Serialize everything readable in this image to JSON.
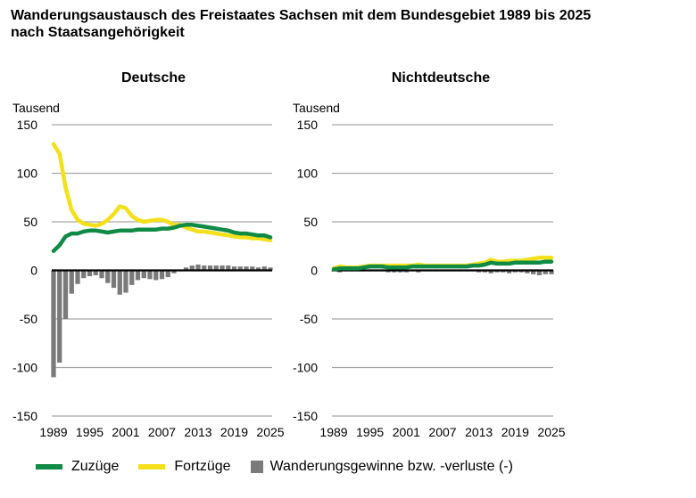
{
  "title": {
    "line1": "Wanderungsaustausch des Freistaates Sachsen mit dem Bundesgebiet 1989 bis 2025",
    "line2": "nach Staatsangehörigkeit"
  },
  "colors": {
    "zuzuege": "#0f8b46",
    "fortzuege": "#f3e01a",
    "saldo": "#7a7a7a",
    "grid": "#a6a6a6"
  },
  "legend": {
    "zuzuege": "Zuzüge",
    "fortzuege": "Fortzüge",
    "saldo": "Wanderungsgewinne bzw. -verluste (-)"
  },
  "chart_data": [
    {
      "type": "line",
      "title": "Deutsche",
      "ylabel": "Tausend",
      "ylim": [
        -150,
        150
      ],
      "yticks": [
        150,
        100,
        50,
        0,
        -50,
        -100,
        -150
      ],
      "xticks": [
        1989,
        1995,
        2001,
        2007,
        2013,
        2019,
        2025
      ],
      "grid": true,
      "x": [
        1989,
        1990,
        1991,
        1992,
        1993,
        1994,
        1995,
        1996,
        1997,
        1998,
        1999,
        2000,
        2001,
        2002,
        2003,
        2004,
        2005,
        2006,
        2007,
        2008,
        2009,
        2010,
        2011,
        2012,
        2013,
        2014,
        2015,
        2016,
        2017,
        2018,
        2019,
        2020,
        2021,
        2022,
        2023,
        2024,
        2025
      ],
      "series": [
        {
          "name": "Zuzüge",
          "kind": "line",
          "color": "#0f8b46",
          "values": [
            20,
            26,
            35,
            38,
            38,
            40,
            41,
            41,
            40,
            39,
            40,
            41,
            41,
            41,
            42,
            42,
            42,
            42,
            43,
            43,
            44,
            46,
            47,
            47,
            46,
            45,
            44,
            43,
            42,
            41,
            39,
            38,
            38,
            37,
            36,
            36,
            34
          ]
        },
        {
          "name": "Fortzüge",
          "kind": "line",
          "color": "#f3e01a",
          "values": [
            130,
            120,
            85,
            62,
            52,
            48,
            47,
            46,
            48,
            52,
            58,
            66,
            64,
            56,
            52,
            50,
            51,
            52,
            52,
            50,
            47,
            47,
            44,
            42,
            40,
            40,
            39,
            38,
            37,
            36,
            35,
            34,
            34,
            33,
            33,
            32,
            31
          ]
        },
        {
          "name": "Wanderungsgewinne bzw. -verluste (-)",
          "kind": "bar",
          "color": "#7a7a7a",
          "values": [
            -110,
            -95,
            -50,
            -24,
            -14,
            -8,
            -6,
            -5,
            -8,
            -13,
            -18,
            -25,
            -23,
            -15,
            -10,
            -8,
            -9,
            -10,
            -9,
            -7,
            -3,
            -1,
            3,
            5,
            6,
            5,
            5,
            5,
            5,
            5,
            4,
            4,
            4,
            4,
            3,
            4,
            3
          ]
        }
      ]
    },
    {
      "type": "line",
      "title": "Nichtdeutsche",
      "ylabel": "Tausend",
      "ylim": [
        -150,
        150
      ],
      "yticks": [
        150,
        100,
        50,
        0,
        -50,
        -100,
        -150
      ],
      "xticks": [
        1989,
        1995,
        2001,
        2007,
        2013,
        2019,
        2025
      ],
      "grid": true,
      "x": [
        1989,
        1990,
        1991,
        1992,
        1993,
        1994,
        1995,
        1996,
        1997,
        1998,
        1999,
        2000,
        2001,
        2002,
        2003,
        2004,
        2005,
        2006,
        2007,
        2008,
        2009,
        2010,
        2011,
        2012,
        2013,
        2014,
        2015,
        2016,
        2017,
        2018,
        2019,
        2020,
        2021,
        2022,
        2023,
        2024,
        2025
      ],
      "series": [
        {
          "name": "Zuzüge",
          "kind": "line",
          "color": "#0f8b46",
          "values": [
            1,
            2,
            2,
            2,
            2,
            3,
            4,
            4,
            4,
            3,
            3,
            3,
            3,
            4,
            4,
            4,
            4,
            4,
            4,
            4,
            4,
            4,
            4,
            5,
            5,
            6,
            8,
            7,
            7,
            7,
            8,
            8,
            8,
            8,
            8,
            9,
            9
          ]
        },
        {
          "name": "Fortzüge",
          "kind": "line",
          "color": "#f3e01a",
          "values": [
            2,
            4,
            3,
            3,
            3,
            4,
            5,
            5,
            5,
            5,
            5,
            5,
            5,
            5,
            6,
            5,
            5,
            5,
            5,
            5,
            5,
            5,
            5,
            6,
            7,
            8,
            11,
            9,
            9,
            10,
            10,
            10,
            11,
            12,
            13,
            13,
            13
          ]
        },
        {
          "name": "Wanderungsgewinne bzw. -verluste (-)",
          "kind": "bar",
          "color": "#7a7a7a",
          "values": [
            -1,
            -2,
            -1,
            -1,
            -1,
            -1,
            -1,
            -1,
            -1,
            -2,
            -2,
            -2,
            -2,
            -1,
            -2,
            -1,
            -1,
            -1,
            -1,
            -1,
            -1,
            -1,
            -1,
            -1,
            -2,
            -2,
            -3,
            -2,
            -2,
            -3,
            -2,
            -2,
            -3,
            -4,
            -5,
            -4,
            -4
          ]
        }
      ]
    }
  ]
}
